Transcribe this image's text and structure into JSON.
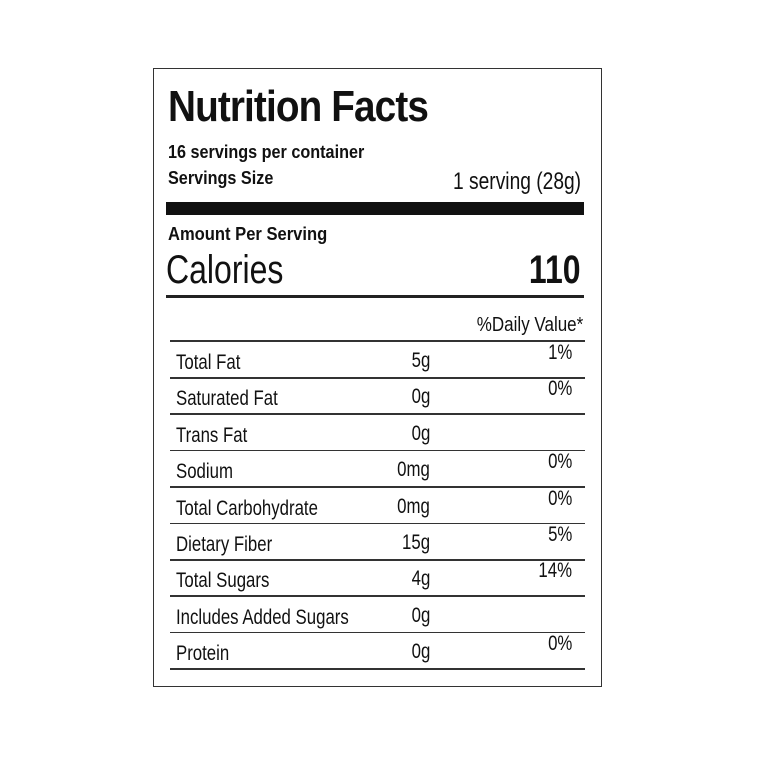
{
  "label": {
    "title": "Nutrition Facts",
    "servings_per_container": "16 servings per container",
    "serving_size_label": "Servings Size",
    "serving_size_value": "1 serving (28g)",
    "amount_per_serving": "Amount Per Serving",
    "calories_label": "Calories",
    "calories_value": "110",
    "daily_value_header": "%Daily Value*",
    "rows": [
      {
        "name": "Total Fat",
        "amount": "5g",
        "dv": "1%"
      },
      {
        "name": "Saturated Fat",
        "amount": "0g",
        "dv": "0%"
      },
      {
        "name": "Trans Fat",
        "amount": "0g",
        "dv": ""
      },
      {
        "name": "Sodium",
        "amount": "0mg",
        "dv": "0%"
      },
      {
        "name": "Total Carbohydrate",
        "amount": "0mg",
        "dv": "0%"
      },
      {
        "name": "Dietary Fiber",
        "amount": "15g",
        "dv": "5%"
      },
      {
        "name": "Total Sugars",
        "amount": "4g",
        "dv": "14%"
      },
      {
        "name": "Includes Added Sugars",
        "amount": "0g",
        "dv": ""
      },
      {
        "name": "Protein",
        "amount": "0g",
        "dv": "0%"
      }
    ]
  }
}
